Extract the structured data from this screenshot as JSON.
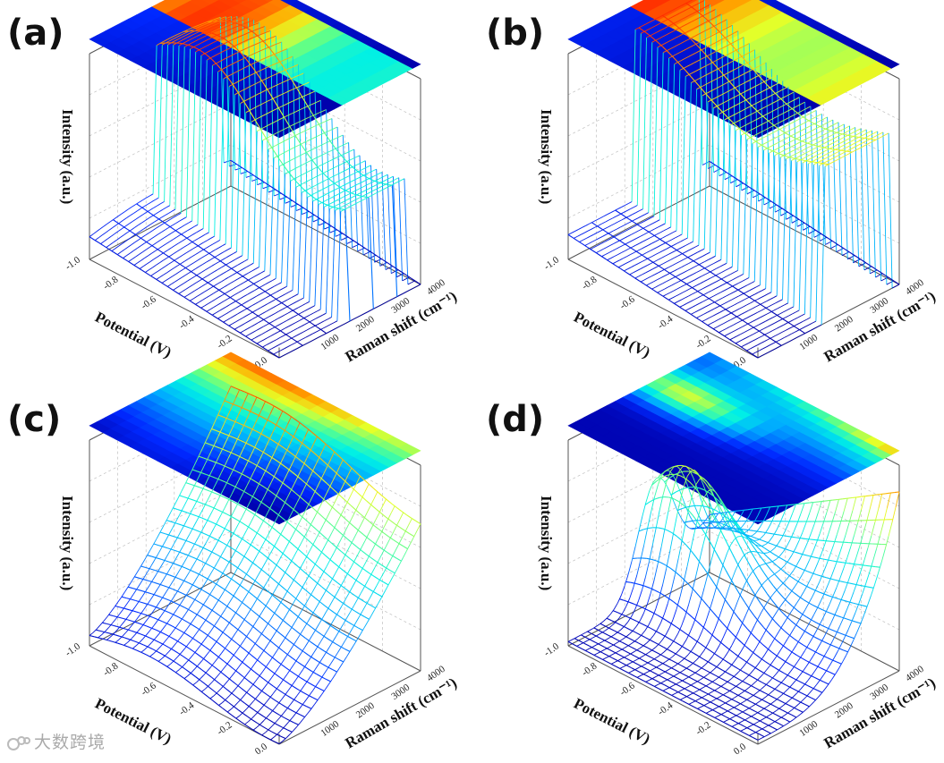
{
  "watermark": "大数跨境",
  "colors": {
    "colormap": [
      "#00007f",
      "#0000ff",
      "#0080ff",
      "#00ffff",
      "#80ff80",
      "#ffff00",
      "#ff8000",
      "#ff0000",
      "#7f0000"
    ],
    "frame": "#555555",
    "grid": "#bfbfbf"
  },
  "chart_data": [
    {
      "type": "surface",
      "panel_label": "(a)",
      "xlabel": "Potential (V)",
      "ylabel": "Raman shift (cm⁻¹)",
      "zlabel": "Intensity (a.u.)",
      "potential_ticks": [
        "-1.0",
        "-0.8",
        "-0.6",
        "-0.4",
        "-0.2",
        "0.0"
      ],
      "raman_ticks": [
        "1000",
        "2000",
        "3000",
        "4000"
      ],
      "potential_range": [
        -1.0,
        0.0
      ],
      "raman_range": [
        0,
        4000
      ],
      "intensity_range": [
        0,
        1
      ],
      "style": "spectra waterfall",
      "description_series": {
        "potential": [
          -1.0,
          -0.8,
          -0.6,
          -0.4,
          -0.2,
          0.0
        ],
        "low_shift_intensity": [
          0.14,
          0.13,
          0.11,
          0.08,
          0.03,
          0.01
        ],
        "high_shift_intensity": [
          0.12,
          0.11,
          0.1,
          0.09,
          0.04,
          0.01
        ]
      }
    },
    {
      "type": "surface",
      "panel_label": "(b)",
      "xlabel": "Potential (V)",
      "ylabel": "Raman shift (cm⁻¹)",
      "zlabel": "Intensity (a.u.)",
      "potential_ticks": [
        "-1.0",
        "-0.8",
        "-0.6",
        "-0.4",
        "-0.2",
        "0.0"
      ],
      "raman_ticks": [
        "1000",
        "2000",
        "3000",
        "4000"
      ],
      "potential_range": [
        -1.0,
        0.0
      ],
      "raman_range": [
        0,
        4000
      ],
      "intensity_range": [
        0,
        1
      ],
      "style": "spectra waterfall"
    },
    {
      "type": "surface",
      "panel_label": "(c)",
      "xlabel": "Potential (V)",
      "ylabel": "Raman shift (cm⁻¹)",
      "zlabel": "Intensity (a.u.)",
      "potential_ticks": [
        "-1.0",
        "-0.8",
        "-0.6",
        "-0.4",
        "-0.2",
        "0.0"
      ],
      "raman_ticks": [
        "1000",
        "2000",
        "3000",
        "4000"
      ],
      "potential_range": [
        -1.0,
        0.0
      ],
      "raman_range": [
        0,
        4000
      ],
      "intensity_range": [
        0,
        1
      ],
      "style": "mesh"
    },
    {
      "type": "surface",
      "panel_label": "(d)",
      "xlabel": "Potential (V)",
      "ylabel": "Raman shift (cm⁻¹)",
      "zlabel": "Intensity (a.u.)",
      "potential_ticks": [
        "-1.0",
        "-0.8",
        "-0.6",
        "-0.4",
        "-0.2",
        "0.0"
      ],
      "raman_ticks": [
        "1000",
        "2000",
        "3000",
        "4000"
      ],
      "potential_range": [
        -1.0,
        0.0
      ],
      "raman_range": [
        0,
        4000
      ],
      "intensity_range": [
        0,
        1
      ],
      "style": "mesh"
    }
  ]
}
